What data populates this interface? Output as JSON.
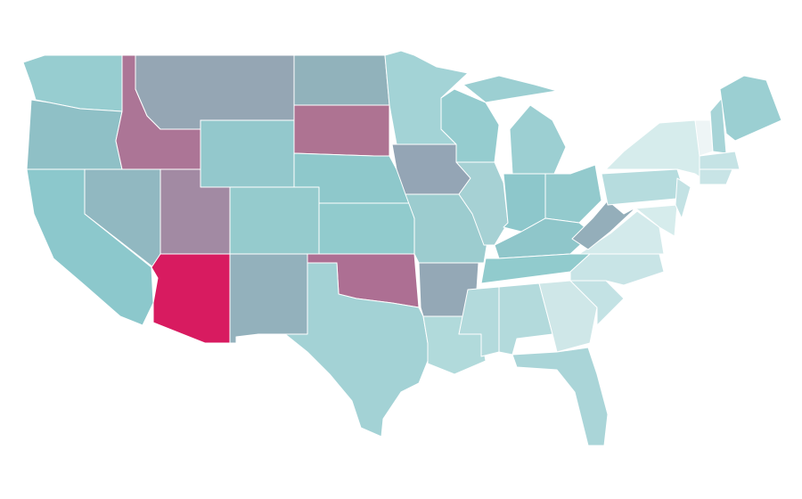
{
  "map": {
    "background": "#ffffff",
    "border_color": "#ffffff",
    "regions": [
      {
        "color": "#97cdd0"
      },
      {
        "color": "#8fc0c6"
      },
      {
        "color": "#8cc8cc"
      },
      {
        "color": "#91b8c1"
      },
      {
        "color": "#ac7596"
      },
      {
        "color": "#95a6b4"
      },
      {
        "color": "#93c8cc"
      },
      {
        "color": "#a28aa3"
      },
      {
        "color": "#d81b60"
      },
      {
        "color": "#95cbcd"
      },
      {
        "color": "#93b1bc"
      },
      {
        "color": "#91b2bb"
      },
      {
        "color": "#ae7392"
      },
      {
        "color": "#8ec8cb"
      },
      {
        "color": "#91cbcd"
      },
      {
        "color": "#ad6f93"
      },
      {
        "color": "#a3d2d5"
      },
      {
        "color": "#a3d3d6"
      },
      {
        "color": "#94a5b5"
      },
      {
        "color": "#9ccccf"
      },
      {
        "color": "#94a8b6"
      },
      {
        "color": "#b1dadb"
      },
      {
        "color": "#95cccf"
      },
      {
        "color": "#a6d1d4"
      },
      {
        "color": "#9ccfd2"
      },
      {
        "color": "#9ccfd2"
      },
      {
        "color": "#8dc7cb"
      },
      {
        "color": "#93cacd"
      },
      {
        "color": "#8fc6ca"
      },
      {
        "color": "#91cbcd"
      },
      {
        "color": "#b3dadc"
      },
      {
        "color": "#b3dadc"
      },
      {
        "color": "#cfe7e8"
      },
      {
        "color": "#aad5d8"
      },
      {
        "color": "#c3e2e4"
      },
      {
        "color": "#c8e4e6"
      },
      {
        "color": "#d3eaeb"
      },
      {
        "color": "#94aeba"
      },
      {
        "color": "#b6dcde"
      },
      {
        "color": "#d6ecec"
      },
      {
        "color": "#d6ecec"
      },
      {
        "color": "#c3e2e4"
      },
      {
        "color": "#eef5f6"
      },
      {
        "color": "#a7d4d7"
      },
      {
        "color": "#9bcfd2"
      },
      {
        "color": "#c5e3e5"
      },
      {
        "color": "#c8e4e6"
      }
    ]
  }
}
